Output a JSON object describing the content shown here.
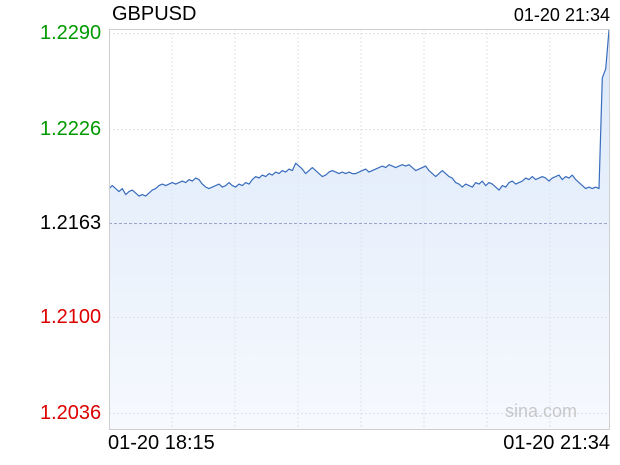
{
  "header": {
    "symbol": "GBPUSD",
    "timestamp": "01-20 21:34"
  },
  "watermark": "sina.com",
  "colors": {
    "up": "#009900",
    "down": "#dd0000",
    "neutral": "#000000",
    "line": "#3a6dbd",
    "fill": "#dce8fa",
    "grid": "#e0e0e0",
    "prev_close_line": "#9aa4c8"
  },
  "chart_data": {
    "type": "area",
    "title": "GBPUSD",
    "prev_close": 1.2163,
    "ylim": [
      1.2036,
      1.2292
    ],
    "y_ticks": [
      {
        "label": "1.2290",
        "value": 1.229,
        "color": "up"
      },
      {
        "label": "1.2226",
        "value": 1.2226,
        "color": "up"
      },
      {
        "label": "1.2163",
        "value": 1.2163,
        "color": "neutral"
      },
      {
        "label": "1.2100",
        "value": 1.21,
        "color": "down"
      },
      {
        "label": "1.2036",
        "value": 1.2036,
        "color": "down"
      }
    ],
    "x_tick_labels": [
      "01-20 18:15",
      "01-20 21:34"
    ],
    "grid": true,
    "series": [
      {
        "values": [
          1.2186,
          1.2188,
          1.2186,
          1.2184,
          1.2186,
          1.2182,
          1.2184,
          1.2185,
          1.2183,
          1.2181,
          1.2182,
          1.2181,
          1.2183,
          1.2185,
          1.2186,
          1.2188,
          1.2189,
          1.2188,
          1.2189,
          1.219,
          1.2189,
          1.219,
          1.2191,
          1.219,
          1.2192,
          1.2191,
          1.2193,
          1.2192,
          1.2189,
          1.2187,
          1.2186,
          1.2187,
          1.2188,
          1.2189,
          1.2187,
          1.2188,
          1.219,
          1.2188,
          1.2187,
          1.2189,
          1.2188,
          1.219,
          1.2189,
          1.2192,
          1.2194,
          1.2193,
          1.2195,
          1.2194,
          1.2196,
          1.2195,
          1.2197,
          1.2196,
          1.2198,
          1.2197,
          1.2199,
          1.2198,
          1.2203,
          1.2201,
          1.2199,
          1.2196,
          1.2198,
          1.22,
          1.2198,
          1.2196,
          1.2194,
          1.2195,
          1.2197,
          1.2198,
          1.2197,
          1.2196,
          1.2197,
          1.2196,
          1.2197,
          1.2196,
          1.2196,
          1.2197,
          1.2198,
          1.2199,
          1.2197,
          1.2198,
          1.2199,
          1.22,
          1.2201,
          1.22,
          1.2202,
          1.2201,
          1.22,
          1.2201,
          1.2202,
          1.2201,
          1.2202,
          1.22,
          1.2198,
          1.2199,
          1.22,
          1.2201,
          1.2198,
          1.2196,
          1.2194,
          1.2196,
          1.2198,
          1.2196,
          1.2194,
          1.2193,
          1.219,
          1.2189,
          1.2187,
          1.2189,
          1.2188,
          1.2187,
          1.219,
          1.2189,
          1.2191,
          1.2188,
          1.219,
          1.2189,
          1.2187,
          1.2185,
          1.2188,
          1.2187,
          1.219,
          1.2191,
          1.2189,
          1.219,
          1.2191,
          1.2193,
          1.2192,
          1.2194,
          1.2192,
          1.2193,
          1.2194,
          1.2193,
          1.2191,
          1.2193,
          1.2194,
          1.2195,
          1.2192,
          1.2194,
          1.2193,
          1.2195,
          1.2192,
          1.219,
          1.2188,
          1.2186,
          1.2187,
          1.2186,
          1.2187,
          1.2186,
          1.226,
          1.2266,
          1.2292
        ]
      }
    ]
  }
}
